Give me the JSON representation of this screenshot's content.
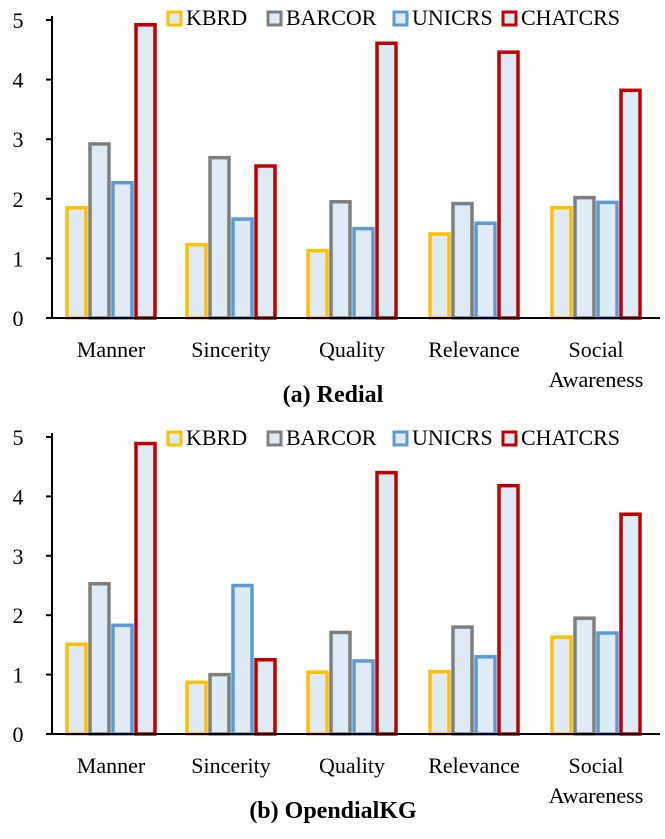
{
  "chart_data": [
    {
      "type": "bar",
      "title": "(a) Redial",
      "categories": [
        "Manner",
        "Sincerity",
        "Quality",
        "Relevance",
        "Social Awareness"
      ],
      "category_lines": [
        [
          "Manner"
        ],
        [
          "Sincerity"
        ],
        [
          "Quality"
        ],
        [
          "Relevance"
        ],
        [
          "Social",
          "Awareness"
        ]
      ],
      "ylim": [
        0,
        5
      ],
      "yticks": [
        "0",
        "1",
        "2",
        "3",
        "4",
        "5"
      ],
      "series": [
        {
          "name": "KBRD",
          "stroke": "#FFC000",
          "fill": "#DEEBF7",
          "values": [
            1.85,
            1.23,
            1.13,
            1.41,
            1.85
          ]
        },
        {
          "name": "BARCOR",
          "stroke": "#7F7F7F",
          "fill": "#DEEBF7",
          "values": [
            2.92,
            2.69,
            1.95,
            1.92,
            2.02
          ]
        },
        {
          "name": "UNICRS",
          "stroke": "#5B9BD5",
          "fill": "#DEEBF7",
          "values": [
            2.27,
            1.66,
            1.5,
            1.59,
            1.94
          ]
        },
        {
          "name": "CHATCRS",
          "stroke": "#C00000",
          "fill": "#DEEBF7",
          "values": [
            4.92,
            2.55,
            4.61,
            4.46,
            3.82
          ]
        }
      ]
    },
    {
      "type": "bar",
      "title": "(b) OpendialKG",
      "categories": [
        "Manner",
        "Sincerity",
        "Quality",
        "Relevance",
        "Social Awareness"
      ],
      "category_lines": [
        [
          "Manner"
        ],
        [
          "Sincerity"
        ],
        [
          "Quality"
        ],
        [
          "Relevance"
        ],
        [
          "Social",
          "Awareness"
        ]
      ],
      "ylim": [
        0,
        5
      ],
      "yticks": [
        "0",
        "1",
        "2",
        "3",
        "4",
        "5"
      ],
      "series": [
        {
          "name": "KBRD",
          "stroke": "#FFC000",
          "fill": "#DEEBF7",
          "values": [
            1.51,
            0.87,
            1.04,
            1.05,
            1.63
          ]
        },
        {
          "name": "BARCOR",
          "stroke": "#7F7F7F",
          "fill": "#DEEBF7",
          "values": [
            2.53,
            1.0,
            1.71,
            1.8,
            1.95
          ]
        },
        {
          "name": "UNICRS",
          "stroke": "#5B9BD5",
          "fill": "#DEEBF7",
          "values": [
            1.83,
            2.5,
            1.23,
            1.3,
            1.7
          ]
        },
        {
          "name": "CHATCRS",
          "stroke": "#C00000",
          "fill": "#DEEBF7",
          "values": [
            4.89,
            1.25,
            4.4,
            4.18,
            3.7
          ]
        }
      ]
    }
  ]
}
